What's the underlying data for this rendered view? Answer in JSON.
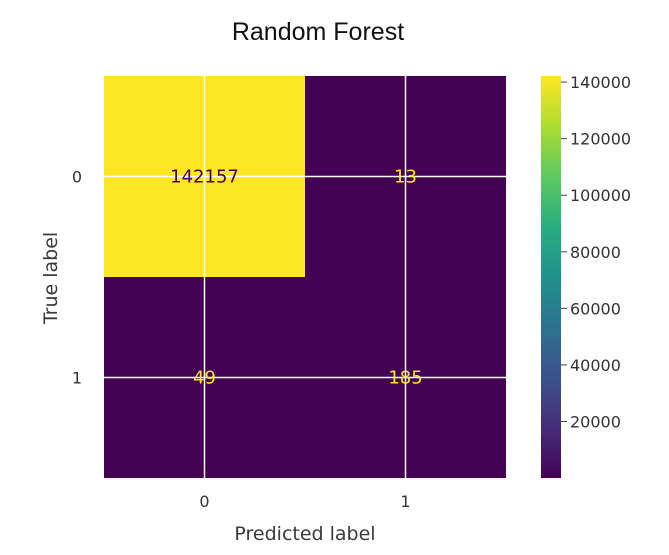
{
  "chart_data": {
    "type": "heatmap",
    "title": "Random Forest",
    "xlabel": "Predicted label",
    "ylabel": "True label",
    "x_categories": [
      "0",
      "1"
    ],
    "y_categories": [
      "0",
      "1"
    ],
    "values": [
      [
        142157,
        13
      ],
      [
        49,
        185
      ]
    ],
    "colormap": "viridis",
    "colorbar": {
      "range": [
        13,
        142157
      ],
      "ticks": [
        20000,
        40000,
        60000,
        80000,
        100000,
        120000,
        140000
      ],
      "tick_labels": [
        "20000",
        "40000",
        "60000",
        "80000",
        "100000",
        "120000",
        "140000"
      ]
    },
    "grid": true,
    "colors": {
      "low": "#440154",
      "high": "#fde725",
      "text_on_low": "#fde725",
      "text_on_high": "#440154",
      "grid": "#ffffff"
    }
  }
}
